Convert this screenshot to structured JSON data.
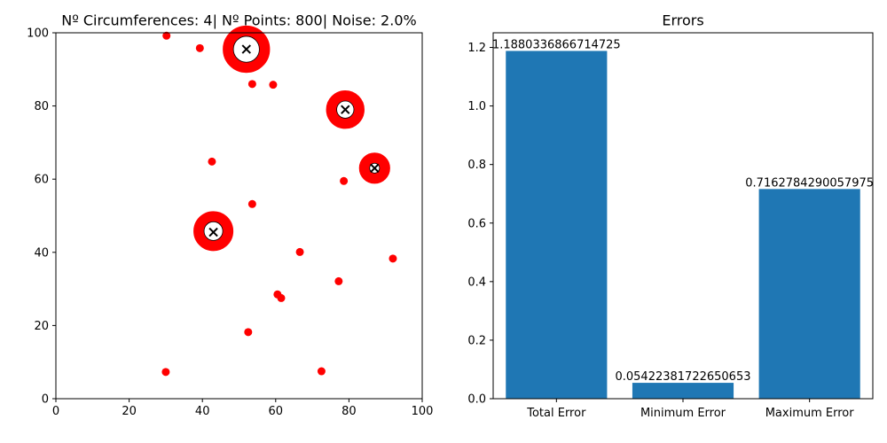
{
  "chart_data": [
    {
      "type": "scatter",
      "title": "Nº Circumferences: 4| Nº Points: 800| Noise: 2.0%",
      "xlim": [
        0,
        100
      ],
      "ylim": [
        0,
        100
      ],
      "xticks": [
        "0",
        "20",
        "40",
        "60",
        "80",
        "100"
      ],
      "yticks": [
        "0",
        "20",
        "40",
        "60",
        "80",
        "100"
      ],
      "grid": false,
      "point_color": "#ff0000",
      "center_marker_color": "#000000",
      "circles": [
        {
          "cx": 52.0,
          "cy": 95.5,
          "r": 5.0
        },
        {
          "cx": 79.0,
          "cy": 79.0,
          "r": 3.8
        },
        {
          "cx": 87.0,
          "cy": 63.0,
          "r": 2.8
        },
        {
          "cx": 43.0,
          "cy": 45.8,
          "r": 4.0
        }
      ],
      "centers": [
        {
          "x": 52.0,
          "y": 95.5
        },
        {
          "x": 79.0,
          "y": 79.0
        },
        {
          "x": 87.0,
          "y": 63.0
        },
        {
          "x": 43.0,
          "y": 45.5
        }
      ],
      "noise_points": [
        {
          "x": 30.2,
          "y": 99.2
        },
        {
          "x": 39.3,
          "y": 95.8
        },
        {
          "x": 53.6,
          "y": 86.0
        },
        {
          "x": 59.3,
          "y": 85.8
        },
        {
          "x": 42.6,
          "y": 64.8
        },
        {
          "x": 78.6,
          "y": 59.5
        },
        {
          "x": 53.6,
          "y": 53.2
        },
        {
          "x": 66.6,
          "y": 40.1
        },
        {
          "x": 92.0,
          "y": 38.3
        },
        {
          "x": 77.2,
          "y": 32.1
        },
        {
          "x": 60.5,
          "y": 28.5
        },
        {
          "x": 61.5,
          "y": 27.5
        },
        {
          "x": 52.5,
          "y": 18.2
        },
        {
          "x": 30.0,
          "y": 7.3
        },
        {
          "x": 72.5,
          "y": 7.5
        }
      ]
    },
    {
      "type": "bar",
      "title": "Errors",
      "categories": [
        "Total Error",
        "Minimum Error",
        "Maximum Error"
      ],
      "values": [
        1.1880336866714725,
        0.05422381722650653,
        0.7162784290057975
      ],
      "value_labels": [
        "1.1880336866714725",
        "0.05422381722650653",
        "0.7162784290057975"
      ],
      "ylim": [
        0,
        1.25
      ],
      "yticks": [
        "0.0",
        "0.2",
        "0.4",
        "0.6",
        "0.8",
        "1.0",
        "1.2"
      ],
      "bar_color": "#1f77b4",
      "grid": false
    }
  ]
}
